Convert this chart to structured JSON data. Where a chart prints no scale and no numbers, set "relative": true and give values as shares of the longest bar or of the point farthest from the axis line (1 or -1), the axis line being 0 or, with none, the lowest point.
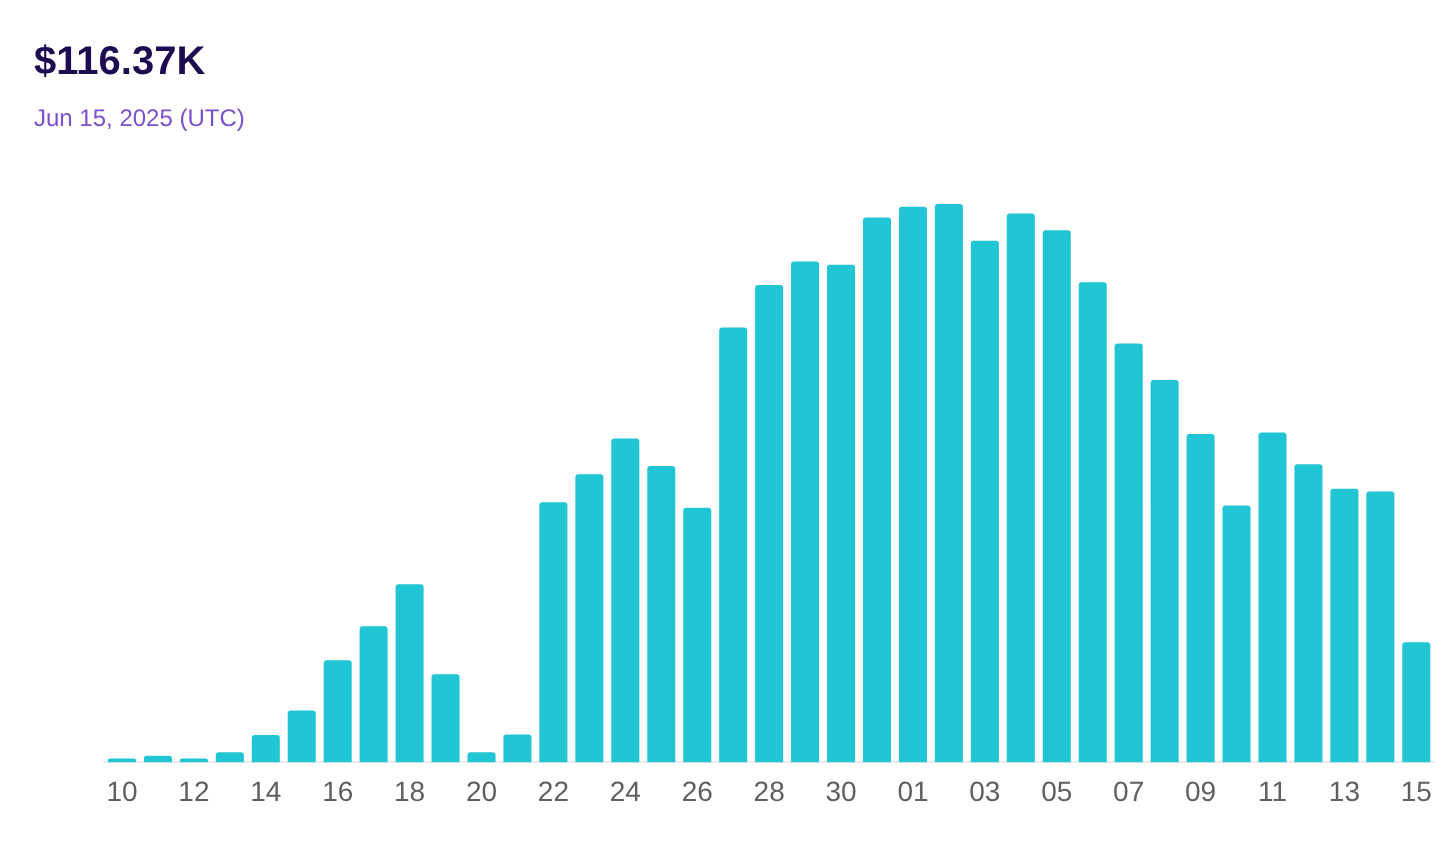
{
  "chart_data": {
    "type": "bar",
    "title": "$116.37K",
    "subtitle": "Jun 15, 2025 (UTC)",
    "categories": [
      "10",
      null,
      "12",
      null,
      "14",
      null,
      "16",
      null,
      "18",
      null,
      "20",
      null,
      "22",
      null,
      "24",
      null,
      "26",
      null,
      "28",
      null,
      "30",
      null,
      "01",
      null,
      "03",
      null,
      "05",
      null,
      "07",
      null,
      "09",
      null,
      "11",
      null,
      "13",
      null,
      "15"
    ],
    "values": [
      0.006,
      0.012,
      0.006,
      0.018,
      0.049,
      0.093,
      0.183,
      0.244,
      0.319,
      0.158,
      0.018,
      0.05,
      0.466,
      0.516,
      0.58,
      0.531,
      0.456,
      0.779,
      0.855,
      0.897,
      0.891,
      0.976,
      0.995,
      1,
      0.934,
      0.983,
      0.953,
      0.86,
      0.75,
      0.685,
      0.588,
      0.46,
      0.591,
      0.534,
      0.49,
      0.485,
      0.215
    ],
    "color": "#22c5d4",
    "relative": true
  }
}
